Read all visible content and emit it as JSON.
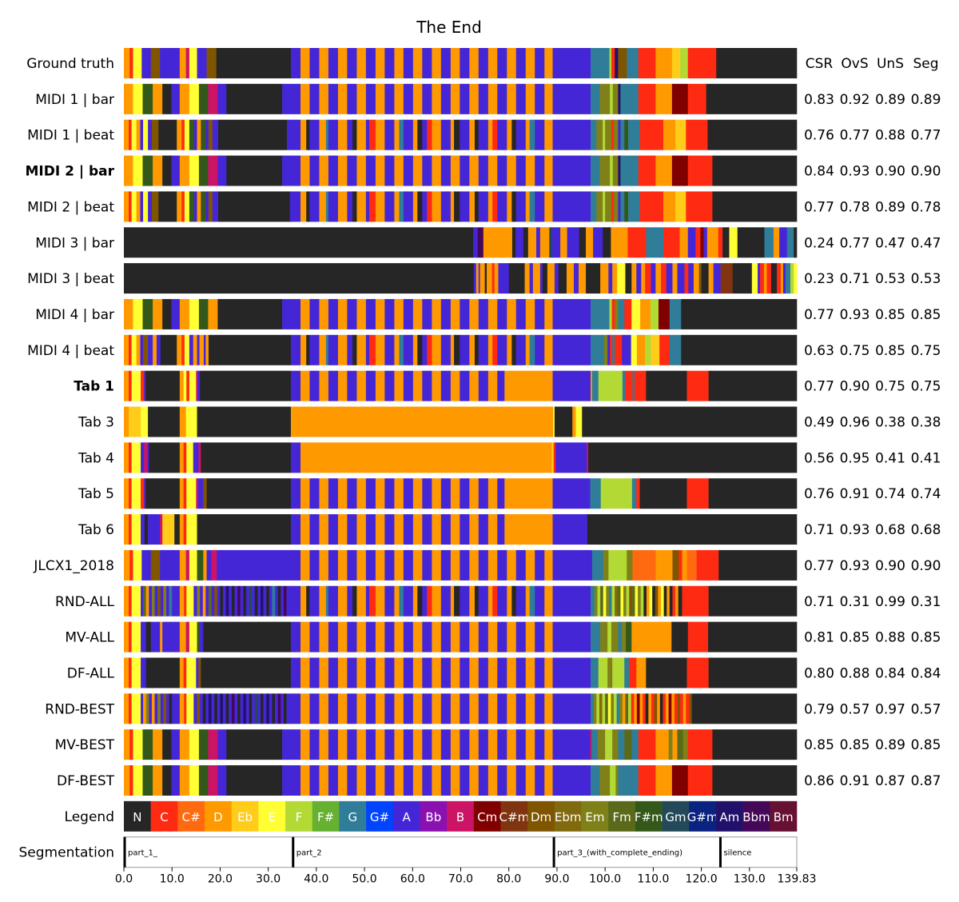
{
  "chart_data": {
    "type": "chord-timeline",
    "title": "The End",
    "xlim": [
      0,
      139.83
    ],
    "xticks": [
      "0.0",
      "10.0",
      "20.0",
      "30.0",
      "40.0",
      "50.0",
      "60.0",
      "70.0",
      "80.0",
      "90.0",
      "100.0",
      "110.0",
      "120.0",
      "130.0",
      "139.83"
    ],
    "xtick_values": [
      0,
      10,
      20,
      30,
      40,
      50,
      60,
      70,
      80,
      90,
      100,
      110,
      120,
      130,
      139.83
    ],
    "metric_headers": [
      "CSR",
      "OvS",
      "UnS",
      "Seg"
    ],
    "patterns": {
      "P2a": "34.7:A 36.7:D 38.6:A 40.6:D 42.5:A 44.5:D 46.4:A 48.4:D 50.3:A 52.3:D 54.2:A 56.2:D 58.1:A 60.1:D 62.0:A 64.0:D 65.9:A 67.9:D 69.8:A 71.8:D 73.7:A 75.7:D 77.6:A",
      "P2tail": "79.6:D 81.5:A 83.5:D 85.4:A 87.4:D",
      "P2": "P2a P2tail",
      "P2F": "34.7:A 36.7:D 37.9:N 38.6:A 40.6:D 42.0:G 42.5:A 44.5:D 46.4:A 47.5:N 48.4:D 50.3:A 51.0:C 52.3:D 54.2:A 56.2:D 57.2:G 58.1:A 60.1:D 61.0:N 62.0:A 63.0:C 64.0:D 65.9:A 67.9:D 68.6:N 69.8:A 71.8:D 72.9:N 73.7:A 75.7:D 76.6:C 77.6:A 79.6:D 80.6:N 81.5:A 83.5:D 84.3:G 85.4:A 87.4:D"
    },
    "rows": [
      {
        "label": "Ground truth",
        "bold": false,
        "metrics": [],
        "segments": "0:D 1.2:C 1.9:E 3.7:A 5.6:Dm 7.5:A 11.6:D 12.9:B 13.6:E 15.2:A 17.2:Dm 19.2:N P2 89.1:A 97:G 100.9:F 101.3:C 102:Am 102.7:Dm 104.5:G 106.9:C 110.5:D 113.9:Eb 115.6:F 117.2:C 123.1:N"
      },
      {
        "label": "MIDI 1 | bar",
        "bold": false,
        "metrics": [
          "0.83",
          "0.92",
          "0.89",
          "0.89"
        ],
        "segments": "0:D 1.9:E 3.9:F#m 6:D 8:N 9.9:A 11.6:D 13.6:E 15.6:F#m 17.5:B 19.5:A 21.3:N 32.9:A P2 89.1:A 97:G 98.9:Em 101:F 101.6:Em 102.7:Am 103.2:G 106.9:C 110.5:D 113.9:Cm 117.2:C 121:N"
      },
      {
        "label": "MIDI 1 | beat",
        "bold": false,
        "metrics": [
          "0.76",
          "0.77",
          "0.88",
          "0.77"
        ],
        "segments": "0:D 1.0:C 1.6:E 2.6:D 3.4:A 4.0:E 5.0:A 5.8:Dm 7.2:N 11.0:D 12.0:C 12.6:E 13.6:F#m 14.6:A 15.2:D 16.0:F#m 17.0:A 17.6:Dm 18.4:A 19.6:N 33.9:A P2F 89.1:A 97:G 98.2:Em 99.5:F 100:Em 101.3:C 101.8:Em 102.7:A 103.2:G 104:F#m 104.8:G 107.2:C 112.1:D 114.6:Eb 116.8:C 121.3:N"
      },
      {
        "label": "MIDI 2 | bar",
        "bold": true,
        "metrics": [
          "0.84",
          "0.93",
          "0.90",
          "0.90"
        ],
        "segments": "0:D 1.9:E 3.9:F#m 6:D 8:N 9.9:A 11.6:D 13.6:E 15.6:F#m 17.5:B 19.5:A 21.3:N 32.9:A P2 89.1:A 97:G 98.9:Em 101:F 101.6:Em 102.7:Am 103.2:G 106.9:C 110.5:D 113.9:Cm 117.2:C 122.3:N"
      },
      {
        "label": "MIDI 2 | beat",
        "bold": false,
        "metrics": [
          "0.77",
          "0.78",
          "0.89",
          "0.78"
        ],
        "segments": "0:D 1.0:C 1.6:E 2.6:D 3.4:A 4.0:E 5.0:A 5.8:Dm 7.2:N 11.0:D 12.0:C 12.6:E 13.6:F#m 14.6:A 15.2:D 16.0:F#m 17.0:A 17.6:Dm 18.4:A 19.6:N 34.5:A P2F 89.1:A 97:G 98.2:Em 99.5:F 100:Em 101.3:C 101.8:Em 102.7:A 103.2:G 104:F#m 104.8:G 107.2:C 112.1:D 114.6:Eb 116.8:C 122.3:N"
      },
      {
        "label": "MIDI 3 | bar",
        "bold": false,
        "metrics": [
          "0.24",
          "0.77",
          "0.47",
          "0.47"
        ],
        "segments": "0:N 72.6:A 73.5:Bbm 74.7:D 80.7:N 81.4:A 83.0:N 84:D 85.7:A 86.5:D 88.4:Gm 89:A 90.7:D 92.1:A 94.6:N 96:D 97.5:A 99.5:N 101.2:D 104.7:C 108.5:G 112.1:C 115.5:D 117.2:A 118.8:C 119.8:Cm 120.5:A 121.2:D 123.5:C 124.4:N 125.8:E 127.5:N 133.1:G 135:D 136.2:A 137.8:G 139.2:N"
      },
      {
        "label": "MIDI 3 | beat",
        "bold": false,
        "metrics": [
          "0.23",
          "0.71",
          "0.53",
          "0.53"
        ],
        "segments": "0:N 72.7:A 73.2:D 73.7:A 74:D 75:N 75.4:D 76.5:C 77:D 77.8:A 80:N 83.3:D 84.3:A 85:D 86.5:A 87:N 88:D 89.5:A 90.3:N 92:D 93.5:A 94.5:D 96:N 99:D 100.7:A 101.5:D 102.5:E 104.2:N 105.5:D 106.5:A 107.5:D 108.3:C 109.5:A 110.5:D 111.6:C 112.7:A 114:D 115:A 116.5:C 117.3:A 118.4:D 119.5:Dm 120:N 121.5:D 122.5:A 124:C#m 126.5:N 130.5:E 131.7:A 132.2:C 133:D 133.6:C 134.5:N 135.7:C 136.5:D 137:A 137.5:G 138.5:F 139.2:E"
      },
      {
        "label": "MIDI 4 | bar",
        "bold": false,
        "metrics": [
          "0.77",
          "0.93",
          "0.85",
          "0.85"
        ],
        "segments": "0:D 1.9:E 3.9:F#m 6:D 8:N 9.9:A 11.6:D 13.6:E 15.6:F#m 17.5:D 19.5:N 32.9:A P2 89.1:A 97:G 100.9:F 101.4:C 102:Em 102.7:G 104:C 105.5:E 107.3:D 109.4:F 111.1:Cm 113.4:G 115.8:N"
      },
      {
        "label": "MIDI 4 | beat",
        "bold": false,
        "metrics": [
          "0.63",
          "0.75",
          "0.85",
          "0.75"
        ],
        "segments": "0:D 1.0:C 1.6:E 2.6:D 3.4:A 4.0:Dm 5.0:A 6.0:D 6.8:A 7.6:N 11.0:D 12.0:C 12.6:E 13.6:A 14.4:D 15.2:A 15.7:D 16.6:A 17.0:D 17.6:N P2F 89.1:A 97:G 99.8:Em 100.5:A 101:C 101.5:G 102:C 103.5:A 105.4:E 106.6:D 108.3:F 109.5:Eb 111.3:C 113.4:G 115.8:N"
      },
      {
        "label": "Tab 1",
        "bold": true,
        "metrics": [
          "0.77",
          "0.90",
          "0.75",
          "0.75"
        ],
        "segments": "0:D 1.0:C 1.6:E 3.5:C 4.2:A 4.5:N 11.6:D 12.4:E 13.0:C 13.6:E 15.0:B 15.3:A 15.8:N P2a 79.1:D 89.1:A 97:D 97.3:G 98.6:F 103.6:G 104.2:C 105.7:G 106.1:C 108.5:N 117:C 121.5:N"
      },
      {
        "label": "Tab 3",
        "bold": false,
        "metrics": [
          "0.49",
          "0.96",
          "0.38",
          "0.38"
        ],
        "segments": "0:D 1.0:Eb 3.5:E 5.0:N 11.6:D 12.9:E 15.2:N 34.7:D 89.2:E 89.5:N 93.2:D 93.9:E 95.2:N"
      },
      {
        "label": "Tab 4",
        "bold": false,
        "metrics": [
          "0.56",
          "0.95",
          "0.41",
          "0.41"
        ],
        "segments": "0:D 1.0:C 1.6:E 3.5:A 4.2:B 4.9:A 5.2:N 11.6:D 12.4:C 13.0:E 14.4:A 15.5:B 16.0:N 34.7:A 36.7:D 88.9:Eb 89.3:C 89.7:A 96.2:B 96.5:N"
      },
      {
        "label": "Tab 5",
        "bold": false,
        "metrics": [
          "0.76",
          "0.91",
          "0.74",
          "0.74"
        ],
        "segments": "0:D 1.0:C 1.6:E 3.5:C 4.2:A 4.5:N 11.6:D 12.4:C 13.0:E 15.0:B 15.4:A 16.5:Dm 17.2:N P2a 79.1:D 89.1:A 96.9:G 99.1:F 105.6:G 106.5:C 107.2:N 117:C 121.5:N"
      },
      {
        "label": "Tab 6",
        "bold": false,
        "metrics": [
          "0.71",
          "0.93",
          "0.68",
          "0.68"
        ],
        "segments": "0:D 1.0:C 1.6:E 3.5:A 4.3:N 5.0:A 7.5:B 8.0:Eb 10.5:N 11.6:D 12.4:C 13.0:E 15.2:N P2a 79.1:D 89.1:A 96.3:N"
      },
      {
        "label": "JLCX1_2018",
        "bold": false,
        "metrics": [
          "0.77",
          "0.93",
          "0.90",
          "0.90"
        ],
        "segments": "0:D 1.2:C 1.9:E 3.7:A 5.6:Dm 7.5:A 11.6:D 12.9:B 13.6:E 15.2:F#m 16.5:D 17.2:A 18.2:B 19.3:A P2 89.1:A 97.3:G 99.6:Em 100.7:F 104.5:Em 105.7:C# 110.5:D 114:Dm 115.3:C 116:D 117:C# 119:C 123.6:N"
      },
      {
        "label": "RND-ALL",
        "bold": false,
        "metrics": [
          "0.71",
          "0.31",
          "0.99",
          "0.31"
        ],
        "segments": "0:D 1.0:C 1.6:E 3.5:A 4.0:Fm 4.6:D 5.2:A 5.8:Em 6.4:A 7.0:Dm 7.6:A 8.2:Em 8.8:A 9.4:G 10.0:A 11.6:D 12.5:C 13.0:E 14.5:A 15.2:Em 15.8:A 16.4:D 17.0:A 17.6:Fm 18.2:A 18.8:Dm 19.4:A 20.0:N 20.6:A 21.2:Am 21.8:A 22.4:N 23.0:A 23.6:Bbm 24.2:A 24.8:N 25.4:A 26.0:Gm 26.6:A 27.2:N 27.8:A 28.4:Am 29.0:A 29.6:N 30.2:A 30.8:G 31.4:A 32.0:N 32.6:A 33.2:Bbm 33.8:A P2F 89.1:A 97:G 97.8:Em 98.4:F 99:Fm 99.6:E 100.2:Em 100.8:G 101.4:F 102:Ebm 102.6:Fm 103.2:E 103.8:Em 104.4:F 105:Dm 105.6:Fm 106.2:E 106.8:Em 107.4:F 108:N 108.6:D 109.2:E 109.8:N 110.4:Dm 111:D 111.6:E 112.2:N 112.8:D 113.4:N 114:C 114.6:D 115.2:N 116:C 121.5:N"
      },
      {
        "label": "MV-ALL",
        "bold": false,
        "metrics": [
          "0.81",
          "0.85",
          "0.88",
          "0.85"
        ],
        "segments": "0:D 1.0:C 1.6:E 3.5:A 4.6:N 5.6:A 7.5:D 8.0:A 11.6:D 12.9:B 13.6:E 15.2:F#m 15.8:A 16.5:N P2 89.1:A 97:G 99:Em 100.5:F 101.3:Em 102.7:G 103.5:Em 104.3:F#m 105.5:D 113.8:N 117.2:C 121.4:N"
      },
      {
        "label": "DF-ALL",
        "bold": false,
        "metrics": [
          "0.80",
          "0.88",
          "0.84",
          "0.84"
        ],
        "segments": "0:D 1.0:C 1.6:E 3.5:A 4.6:N 11.6:D 12.4:C 13.0:E 15.0:A 15.5:Dm 16.0:N P2 89.1:A 97:G 98.6:F 100.5:Em 101.5:F 104:G 105:C 106.5:D 108.5:N 117:C 121.5:N"
      },
      {
        "label": "RND-BEST",
        "bold": false,
        "metrics": [
          "0.79",
          "0.57",
          "0.97",
          "0.57"
        ],
        "segments": "0:D 1.0:C 1.6:E 3.5:A 4.0:D 4.6:Em 5.2:A 5.8:D 6.4:A 7.0:Em 7.6:A 8.2:Dm 8.8:A 9.4:N 10.0:A 11.6:D 12.5:C 13.0:E 14.5:A 15.2:Dm 15.8:A 16.4:N 17.0:A 17.6:Am 18.2:A 18.8:N 19.4:A 20.0:Am 20.6:A 21.2:N 21.8:A 22.4:Bbm 23.0:A 23.6:N 24.2:A 24.8:Am 25.4:A 26.0:N 26.6:A 27.2:Gm 27.8:A 28.4:N 29.0:A 29.6:Am 30.2:A 30.8:N 31.4:A 32.0:Bbm 32.6:A 33.2:N 33.8:A P2 89.1:A 97:G 97.6:Em 98.2:F 98.8:Ebm 99.4:F 100:Fm 100.6:E 101.2:Em 101.8:F 102.4:G 103:Em 103.6:D 104.2:Fm 104.8:F 105.4:C 106:D 106.6:Cm 107.2:D 107.8:C 108.4:N 109:D 109.6:C 110.2:Dm 110.8:D 111.4:N 112:C 112.6:D 113.2:Cm 113.8:D 114.4:C 115:Dm 115.6:C 116.2:D 116.8:C 117.5:Dm 118:N"
      },
      {
        "label": "MV-BEST",
        "bold": false,
        "metrics": [
          "0.85",
          "0.85",
          "0.89",
          "0.85"
        ],
        "segments": "0:D 1.2:C 1.9:E 3.9:F#m 6:D 8:N 9.9:A 11.6:D 13.6:E 15.6:F#m 17.5:B 19.5:A 21.3:N 32.9:A P2 89.1:A 96.9:B 97.2:G 98.5:Em 100:F 101.5:Em 102.7:G 104:Fm 105.5:G 106.9:C 110.5:D 113.2:Em 114:D 115:Fm 116.2:Em 117.2:C 122.3:N"
      },
      {
        "label": "DF-BEST",
        "bold": false,
        "metrics": [
          "0.86",
          "0.91",
          "0.87",
          "0.87"
        ],
        "segments": "0:D 1.2:C 1.9:E 3.9:F#m 6:D 8:N 9.9:A 11.6:D 13.6:E 15.6:F#m 17.5:B 19.5:A 21.3:N 32.9:A P2 89.1:A 97:G 98.9:Em 101:F 102.2:Em 102.7:G 106.9:C 110.5:D 113.9:Cm 117.2:C 122.3:N"
      }
    ],
    "legend_label": "Legend",
    "legend": [
      {
        "name": "N",
        "color": "#262626"
      },
      {
        "name": "C",
        "color": "#ff2a12"
      },
      {
        "name": "C#",
        "color": "#ff6a10"
      },
      {
        "name": "D",
        "color": "#ff9900"
      },
      {
        "name": "Eb",
        "color": "#ffcc19"
      },
      {
        "name": "E",
        "color": "#ffff33"
      },
      {
        "name": "F",
        "color": "#b3d935"
      },
      {
        "name": "F#",
        "color": "#66b032"
      },
      {
        "name": "G",
        "color": "#2f7d99"
      },
      {
        "name": "G#",
        "color": "#0044ff"
      },
      {
        "name": "A",
        "color": "#4526d6"
      },
      {
        "name": "Bb",
        "color": "#8a10b0"
      },
      {
        "name": "B",
        "color": "#cc1466"
      },
      {
        "name": "Cm",
        "color": "#800000"
      },
      {
        "name": "C#m",
        "color": "#803510"
      },
      {
        "name": "Dm",
        "color": "#805500"
      },
      {
        "name": "Ebm",
        "color": "#806a0d"
      },
      {
        "name": "Em",
        "color": "#808019"
      },
      {
        "name": "Fm",
        "color": "#5a6a1a"
      },
      {
        "name": "F#m",
        "color": "#33581a"
      },
      {
        "name": "Gm",
        "color": "#244a5a"
      },
      {
        "name": "G#m",
        "color": "#0a2280"
      },
      {
        "name": "Am",
        "color": "#22116b"
      },
      {
        "name": "Bbm",
        "color": "#450858"
      },
      {
        "name": "Bm",
        "color": "#661033"
      }
    ],
    "segmentation_label": "Segmentation",
    "segmentation": [
      {
        "label": "part_1_",
        "start": 0,
        "end": 35.0
      },
      {
        "label": "part_2",
        "start": 35.0,
        "end": 89.2
      },
      {
        "label": "part_3_(with_complete_ending)",
        "start": 89.2,
        "end": 123.8
      },
      {
        "label": "silence",
        "start": 123.8,
        "end": 139.83
      }
    ]
  }
}
